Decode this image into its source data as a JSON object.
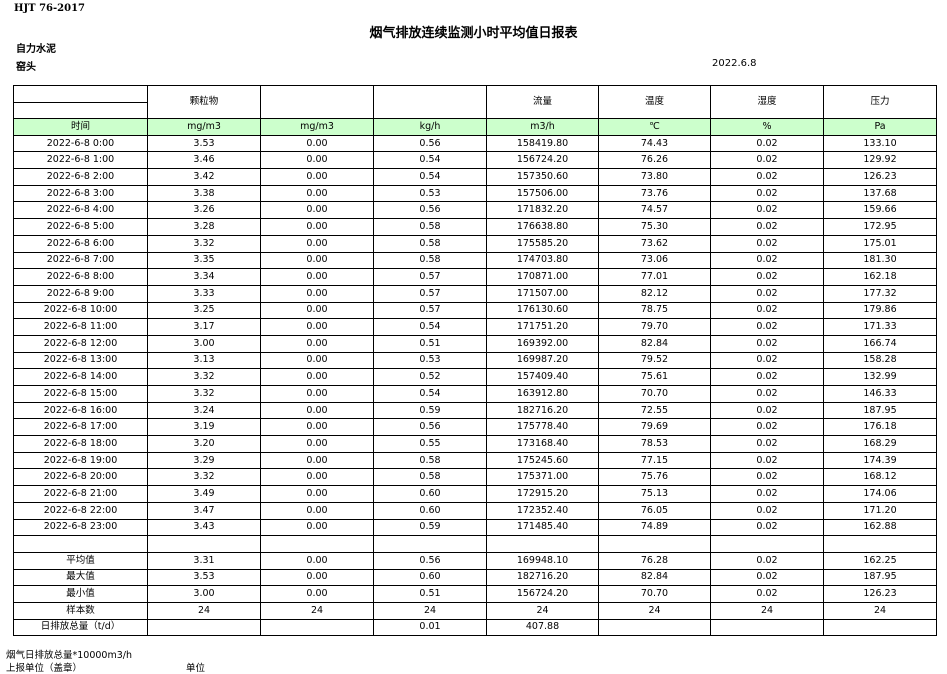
{
  "header": {
    "standard": "HJT  76-2017",
    "title": "烟气排放连续监测小时平均值日报表",
    "company": "自力水泥",
    "unit": "窑头",
    "date": "2022.6.8"
  },
  "table": {
    "top_headers": [
      "",
      "颗粒物",
      "",
      "",
      "流量",
      "温度",
      "湿度",
      "压力"
    ],
    "unit_headers": [
      "时间",
      "mg/m3",
      "mg/m3",
      "kg/h",
      "m3/h",
      "℃",
      "%",
      "Pa"
    ],
    "rows": [
      [
        "2022-6-8 0:00",
        "3.53",
        "0.00",
        "0.56",
        "158419.80",
        "74.43",
        "0.02",
        "133.10"
      ],
      [
        "2022-6-8 1:00",
        "3.46",
        "0.00",
        "0.54",
        "156724.20",
        "76.26",
        "0.02",
        "129.92"
      ],
      [
        "2022-6-8 2:00",
        "3.42",
        "0.00",
        "0.54",
        "157350.60",
        "73.80",
        "0.02",
        "126.23"
      ],
      [
        "2022-6-8 3:00",
        "3.38",
        "0.00",
        "0.53",
        "157506.00",
        "73.76",
        "0.02",
        "137.68"
      ],
      [
        "2022-6-8 4:00",
        "3.26",
        "0.00",
        "0.56",
        "171832.20",
        "74.57",
        "0.02",
        "159.66"
      ],
      [
        "2022-6-8 5:00",
        "3.28",
        "0.00",
        "0.58",
        "176638.80",
        "75.30",
        "0.02",
        "172.95"
      ],
      [
        "2022-6-8 6:00",
        "3.32",
        "0.00",
        "0.58",
        "175585.20",
        "73.62",
        "0.02",
        "175.01"
      ],
      [
        "2022-6-8 7:00",
        "3.35",
        "0.00",
        "0.58",
        "174703.80",
        "73.06",
        "0.02",
        "181.30"
      ],
      [
        "2022-6-8 8:00",
        "3.34",
        "0.00",
        "0.57",
        "170871.00",
        "77.01",
        "0.02",
        "162.18"
      ],
      [
        "2022-6-8 9:00",
        "3.33",
        "0.00",
        "0.57",
        "171507.00",
        "82.12",
        "0.02",
        "177.32"
      ],
      [
        "2022-6-8 10:00",
        "3.25",
        "0.00",
        "0.57",
        "176130.60",
        "78.75",
        "0.02",
        "179.86"
      ],
      [
        "2022-6-8 11:00",
        "3.17",
        "0.00",
        "0.54",
        "171751.20",
        "79.70",
        "0.02",
        "171.33"
      ],
      [
        "2022-6-8 12:00",
        "3.00",
        "0.00",
        "0.51",
        "169392.00",
        "82.84",
        "0.02",
        "166.74"
      ],
      [
        "2022-6-8 13:00",
        "3.13",
        "0.00",
        "0.53",
        "169987.20",
        "79.52",
        "0.02",
        "158.28"
      ],
      [
        "2022-6-8 14:00",
        "3.32",
        "0.00",
        "0.52",
        "157409.40",
        "75.61",
        "0.02",
        "132.99"
      ],
      [
        "2022-6-8 15:00",
        "3.32",
        "0.00",
        "0.54",
        "163912.80",
        "70.70",
        "0.02",
        "146.33"
      ],
      [
        "2022-6-8 16:00",
        "3.24",
        "0.00",
        "0.59",
        "182716.20",
        "72.55",
        "0.02",
        "187.95"
      ],
      [
        "2022-6-8 17:00",
        "3.19",
        "0.00",
        "0.56",
        "175778.40",
        "79.69",
        "0.02",
        "176.18"
      ],
      [
        "2022-6-8 18:00",
        "3.20",
        "0.00",
        "0.55",
        "173168.40",
        "78.53",
        "0.02",
        "168.29"
      ],
      [
        "2022-6-8 19:00",
        "3.29",
        "0.00",
        "0.58",
        "175245.60",
        "77.15",
        "0.02",
        "174.39"
      ],
      [
        "2022-6-8 20:00",
        "3.32",
        "0.00",
        "0.58",
        "175371.00",
        "75.76",
        "0.02",
        "168.12"
      ],
      [
        "2022-6-8 21:00",
        "3.49",
        "0.00",
        "0.60",
        "172915.20",
        "75.13",
        "0.02",
        "174.06"
      ],
      [
        "2022-6-8 22:00",
        "3.47",
        "0.00",
        "0.60",
        "172352.40",
        "76.05",
        "0.02",
        "171.20"
      ],
      [
        "2022-6-8 23:00",
        "3.43",
        "0.00",
        "0.59",
        "171485.40",
        "74.89",
        "0.02",
        "162.88"
      ]
    ],
    "summary": [
      [
        "平均值",
        "3.31",
        "0.00",
        "0.56",
        "169948.10",
        "76.28",
        "0.02",
        "162.25"
      ],
      [
        "最大值",
        "3.53",
        "0.00",
        "0.60",
        "182716.20",
        "82.84",
        "0.02",
        "187.95"
      ],
      [
        "最小值",
        "3.00",
        "0.00",
        "0.51",
        "156724.20",
        "70.70",
        "0.02",
        "126.23"
      ],
      [
        "样本数",
        "24",
        "24",
        "24",
        "24",
        "24",
        "24",
        "24"
      ],
      [
        "日排放总量（t/d）",
        "",
        "",
        "0.01",
        "407.88",
        "",
        "",
        ""
      ]
    ],
    "header_bg": "#ccffcc"
  },
  "footer": {
    "note": "烟气日排放总量*10000m3/h",
    "report_unit": "上报单位（盖章）",
    "unit_label": "单位"
  }
}
